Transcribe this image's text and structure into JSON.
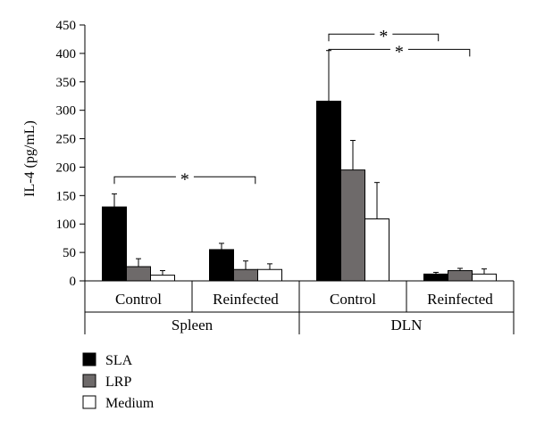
{
  "chart_data": {
    "type": "bar",
    "ylabel": "IL-4 (pg/mL)",
    "ylim": [
      0,
      450
    ],
    "yticks": [
      0,
      50,
      100,
      150,
      200,
      250,
      300,
      350,
      400,
      450
    ],
    "groups": [
      {
        "label": "Spleen",
        "categories": [
          "Control",
          "Reinfected"
        ]
      },
      {
        "label": "DLN",
        "categories": [
          "Control",
          "Reinfected"
        ]
      }
    ],
    "series": [
      {
        "name": "SLA",
        "color": "#000000",
        "values": [
          130,
          55,
          316,
          12
        ],
        "errors": [
          23,
          11,
          89,
          3
        ]
      },
      {
        "name": "LRP",
        "color": "#6e6a6a",
        "values": [
          25,
          20,
          195,
          18
        ],
        "errors": [
          14,
          15,
          52,
          4
        ]
      },
      {
        "name": "Medium",
        "color": "#ffffff",
        "values": [
          10,
          20,
          109,
          12
        ],
        "errors": [
          8,
          10,
          64,
          9
        ]
      }
    ],
    "significance": [
      {
        "label": "*",
        "from_category": 0,
        "to_category": 1,
        "height": 183
      },
      {
        "label": "*",
        "from_category": 2,
        "to_category": 3,
        "height": 434
      },
      {
        "label": "*",
        "from_category": 2,
        "to_category": 3,
        "height": 407
      }
    ],
    "legend_position": "bottom-left"
  }
}
